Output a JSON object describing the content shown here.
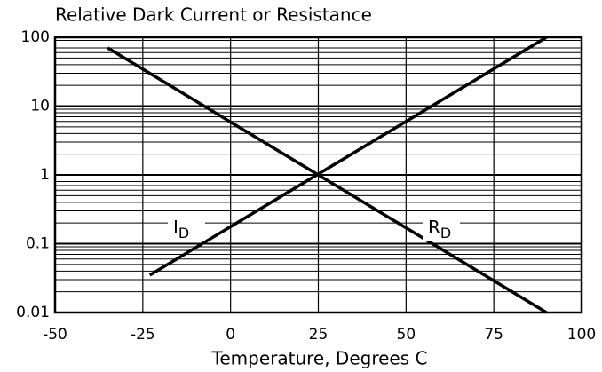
{
  "chart_data": {
    "type": "line",
    "title": "Relative Dark Current or Resistance",
    "xlabel": "Temperature, Degrees C",
    "series": [
      {
        "name": "ID",
        "color": "#000000",
        "x": [
          -23,
          90
        ],
        "values": [
          0.035,
          100
        ]
      },
      {
        "name": "RD",
        "color": "#000000",
        "x": [
          -35,
          90
        ],
        "values": [
          70,
          0.01
        ]
      }
    ],
    "xlim": [
      -50,
      100
    ],
    "xticks": [
      -50,
      -25,
      0,
      25,
      50,
      75,
      100
    ],
    "ylim": [
      0.01,
      100
    ],
    "yticks": [
      0.01,
      0.1,
      1,
      10,
      100
    ],
    "log_y": true,
    "grid": true,
    "minor_grid": true
  }
}
